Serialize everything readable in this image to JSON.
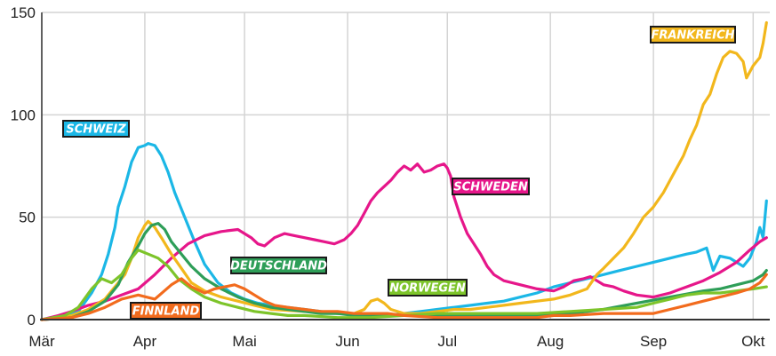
{
  "chart_data": {
    "type": "line",
    "x_unit": "day-of-year (1 = 1 Jan)",
    "x_ticks": [
      {
        "label": "Mär",
        "x": 61
      },
      {
        "label": "Apr",
        "x": 92
      },
      {
        "label": "Mai",
        "x": 122
      },
      {
        "label": "Jun",
        "x": 153
      },
      {
        "label": "Jul",
        "x": 183
      },
      {
        "label": "Aug",
        "x": 214
      },
      {
        "label": "Sep",
        "x": 245
      },
      {
        "label": "Okt",
        "x": 275
      }
    ],
    "xlim": [
      61,
      280
    ],
    "y_ticks": [
      0,
      50,
      100,
      150
    ],
    "ylim": [
      0,
      150
    ],
    "grid": "vertical and horizontal, light gray",
    "series": [
      {
        "name": "SCHWEIZ",
        "color": "#1bb7e6",
        "label_color": "#1bb7e6",
        "points": [
          [
            61,
            0
          ],
          [
            68,
            1
          ],
          [
            72,
            4
          ],
          [
            76,
            13
          ],
          [
            79,
            22
          ],
          [
            81,
            32
          ],
          [
            83,
            45
          ],
          [
            84,
            55
          ],
          [
            86,
            65
          ],
          [
            88,
            77
          ],
          [
            90,
            84
          ],
          [
            92,
            85
          ],
          [
            93,
            86
          ],
          [
            95,
            85
          ],
          [
            97,
            80
          ],
          [
            99,
            72
          ],
          [
            101,
            62
          ],
          [
            104,
            50
          ],
          [
            107,
            38
          ],
          [
            110,
            27
          ],
          [
            114,
            18
          ],
          [
            118,
            13
          ],
          [
            122,
            10
          ],
          [
            126,
            8
          ],
          [
            130,
            7
          ],
          [
            135,
            6
          ],
          [
            140,
            5
          ],
          [
            145,
            4
          ],
          [
            150,
            3
          ],
          [
            155,
            3
          ],
          [
            160,
            2
          ],
          [
            165,
            2
          ],
          [
            170,
            3
          ],
          [
            175,
            4
          ],
          [
            180,
            5
          ],
          [
            185,
            6
          ],
          [
            190,
            7
          ],
          [
            195,
            8
          ],
          [
            200,
            9
          ],
          [
            205,
            11
          ],
          [
            210,
            13
          ],
          [
            215,
            16
          ],
          [
            220,
            18
          ],
          [
            225,
            20
          ],
          [
            230,
            22
          ],
          [
            235,
            24
          ],
          [
            240,
            26
          ],
          [
            245,
            28
          ],
          [
            250,
            30
          ],
          [
            255,
            32
          ],
          [
            258,
            33
          ],
          [
            261,
            35
          ],
          [
            263,
            24
          ],
          [
            265,
            31
          ],
          [
            268,
            30
          ],
          [
            270,
            28
          ],
          [
            272,
            26
          ],
          [
            274,
            30
          ],
          [
            276,
            38
          ],
          [
            277,
            45
          ],
          [
            278,
            40
          ],
          [
            279,
            58
          ]
        ]
      },
      {
        "name": "SCHWEDEN",
        "color": "#e6168a",
        "label_color": "#e6168a",
        "points": [
          [
            61,
            0
          ],
          [
            66,
            2
          ],
          [
            70,
            4
          ],
          [
            75,
            7
          ],
          [
            80,
            9
          ],
          [
            85,
            12
          ],
          [
            90,
            15
          ],
          [
            95,
            22
          ],
          [
            100,
            30
          ],
          [
            105,
            37
          ],
          [
            110,
            41
          ],
          [
            115,
            43
          ],
          [
            120,
            44
          ],
          [
            122,
            42
          ],
          [
            124,
            40
          ],
          [
            126,
            37
          ],
          [
            128,
            36
          ],
          [
            131,
            40
          ],
          [
            134,
            42
          ],
          [
            137,
            41
          ],
          [
            140,
            40
          ],
          [
            143,
            39
          ],
          [
            146,
            38
          ],
          [
            149,
            37
          ],
          [
            152,
            39
          ],
          [
            154,
            42
          ],
          [
            156,
            46
          ],
          [
            158,
            52
          ],
          [
            160,
            58
          ],
          [
            162,
            62
          ],
          [
            164,
            65
          ],
          [
            166,
            68
          ],
          [
            168,
            72
          ],
          [
            170,
            75
          ],
          [
            172,
            73
          ],
          [
            174,
            76
          ],
          [
            176,
            72
          ],
          [
            178,
            73
          ],
          [
            180,
            75
          ],
          [
            182,
            76
          ],
          [
            183,
            74
          ],
          [
            184,
            70
          ],
          [
            185,
            60
          ],
          [
            187,
            50
          ],
          [
            189,
            42
          ],
          [
            191,
            37
          ],
          [
            193,
            32
          ],
          [
            195,
            26
          ],
          [
            197,
            22
          ],
          [
            200,
            19
          ],
          [
            205,
            17
          ],
          [
            210,
            15
          ],
          [
            215,
            14
          ],
          [
            218,
            16
          ],
          [
            221,
            19
          ],
          [
            224,
            20
          ],
          [
            226,
            21
          ],
          [
            228,
            19
          ],
          [
            230,
            17
          ],
          [
            233,
            16
          ],
          [
            236,
            14
          ],
          [
            240,
            12
          ],
          [
            245,
            11
          ],
          [
            250,
            13
          ],
          [
            255,
            16
          ],
          [
            260,
            19
          ],
          [
            265,
            23
          ],
          [
            270,
            28
          ],
          [
            274,
            34
          ],
          [
            277,
            38
          ],
          [
            279,
            40
          ]
        ]
      },
      {
        "name": "FRANKREICH",
        "color": "#f2b71c",
        "label_color": "#f2b71c",
        "points": [
          [
            61,
            0
          ],
          [
            70,
            2
          ],
          [
            75,
            5
          ],
          [
            80,
            10
          ],
          [
            83,
            16
          ],
          [
            86,
            22
          ],
          [
            88,
            30
          ],
          [
            90,
            40
          ],
          [
            92,
            46
          ],
          [
            93,
            48
          ],
          [
            95,
            45
          ],
          [
            97,
            40
          ],
          [
            100,
            32
          ],
          [
            103,
            25
          ],
          [
            106,
            18
          ],
          [
            110,
            14
          ],
          [
            115,
            11
          ],
          [
            120,
            9
          ],
          [
            125,
            7
          ],
          [
            130,
            5
          ],
          [
            140,
            4
          ],
          [
            150,
            3
          ],
          [
            155,
            3
          ],
          [
            158,
            5
          ],
          [
            160,
            9
          ],
          [
            162,
            10
          ],
          [
            164,
            8
          ],
          [
            166,
            5
          ],
          [
            170,
            3
          ],
          [
            175,
            3
          ],
          [
            180,
            4
          ],
          [
            185,
            5
          ],
          [
            190,
            5
          ],
          [
            195,
            6
          ],
          [
            200,
            7
          ],
          [
            205,
            8
          ],
          [
            210,
            9
          ],
          [
            215,
            10
          ],
          [
            220,
            12
          ],
          [
            225,
            15
          ],
          [
            228,
            22
          ],
          [
            230,
            25
          ],
          [
            233,
            30
          ],
          [
            236,
            35
          ],
          [
            239,
            42
          ],
          [
            242,
            50
          ],
          [
            245,
            55
          ],
          [
            248,
            62
          ],
          [
            250,
            68
          ],
          [
            252,
            74
          ],
          [
            254,
            80
          ],
          [
            256,
            88
          ],
          [
            258,
            95
          ],
          [
            260,
            105
          ],
          [
            262,
            110
          ],
          [
            264,
            120
          ],
          [
            266,
            128
          ],
          [
            268,
            131
          ],
          [
            270,
            130
          ],
          [
            272,
            126
          ],
          [
            273,
            118
          ],
          [
            275,
            124
          ],
          [
            277,
            128
          ],
          [
            278,
            135
          ],
          [
            279,
            145
          ]
        ]
      },
      {
        "name": "DEUTSCHLAND",
        "color": "#2e9e58",
        "label_color": "#2e9e58",
        "points": [
          [
            61,
            0
          ],
          [
            70,
            1
          ],
          [
            75,
            4
          ],
          [
            80,
            9
          ],
          [
            84,
            17
          ],
          [
            87,
            28
          ],
          [
            90,
            36
          ],
          [
            92,
            42
          ],
          [
            94,
            46
          ],
          [
            96,
            47
          ],
          [
            98,
            44
          ],
          [
            100,
            38
          ],
          [
            103,
            32
          ],
          [
            106,
            26
          ],
          [
            110,
            20
          ],
          [
            115,
            15
          ],
          [
            120,
            11
          ],
          [
            125,
            8
          ],
          [
            130,
            6
          ],
          [
            135,
            5
          ],
          [
            140,
            4
          ],
          [
            145,
            3
          ],
          [
            150,
            3
          ],
          [
            155,
            2
          ],
          [
            160,
            2
          ],
          [
            170,
            2
          ],
          [
            180,
            2
          ],
          [
            190,
            2
          ],
          [
            200,
            2
          ],
          [
            210,
            2
          ],
          [
            220,
            3
          ],
          [
            230,
            5
          ],
          [
            240,
            8
          ],
          [
            250,
            11
          ],
          [
            260,
            14
          ],
          [
            265,
            15
          ],
          [
            270,
            17
          ],
          [
            275,
            19
          ],
          [
            278,
            22
          ],
          [
            279,
            24
          ]
        ]
      },
      {
        "name": "NORWEGEN",
        "color": "#7dc42a",
        "label_color": "#7dc42a",
        "points": [
          [
            61,
            0
          ],
          [
            68,
            2
          ],
          [
            72,
            6
          ],
          [
            76,
            15
          ],
          [
            79,
            20
          ],
          [
            82,
            18
          ],
          [
            85,
            22
          ],
          [
            88,
            30
          ],
          [
            90,
            34
          ],
          [
            93,
            32
          ],
          [
            96,
            30
          ],
          [
            99,
            26
          ],
          [
            102,
            20
          ],
          [
            106,
            15
          ],
          [
            110,
            11
          ],
          [
            115,
            8
          ],
          [
            120,
            6
          ],
          [
            125,
            4
          ],
          [
            130,
            3
          ],
          [
            135,
            2
          ],
          [
            140,
            2
          ],
          [
            150,
            1
          ],
          [
            160,
            1
          ],
          [
            170,
            2
          ],
          [
            180,
            3
          ],
          [
            190,
            3
          ],
          [
            200,
            3
          ],
          [
            210,
            3
          ],
          [
            220,
            4
          ],
          [
            230,
            5
          ],
          [
            240,
            6
          ],
          [
            245,
            8
          ],
          [
            250,
            10
          ],
          [
            255,
            12
          ],
          [
            260,
            13
          ],
          [
            265,
            13
          ],
          [
            270,
            14
          ],
          [
            275,
            15
          ],
          [
            279,
            16
          ]
        ]
      },
      {
        "name": "FINNLAND",
        "color": "#f26b1d",
        "label_color": "#f26b1d",
        "points": [
          [
            61,
            0
          ],
          [
            70,
            1
          ],
          [
            75,
            3
          ],
          [
            80,
            6
          ],
          [
            85,
            10
          ],
          [
            90,
            12
          ],
          [
            95,
            10
          ],
          [
            100,
            17
          ],
          [
            103,
            20
          ],
          [
            106,
            16
          ],
          [
            110,
            13
          ],
          [
            113,
            15
          ],
          [
            116,
            16
          ],
          [
            119,
            17
          ],
          [
            122,
            15
          ],
          [
            125,
            12
          ],
          [
            128,
            9
          ],
          [
            131,
            7
          ],
          [
            135,
            6
          ],
          [
            140,
            5
          ],
          [
            145,
            4
          ],
          [
            150,
            4
          ],
          [
            155,
            3
          ],
          [
            160,
            3
          ],
          [
            165,
            3
          ],
          [
            170,
            2
          ],
          [
            180,
            1
          ],
          [
            190,
            1
          ],
          [
            200,
            1
          ],
          [
            210,
            1
          ],
          [
            215,
            2
          ],
          [
            220,
            2
          ],
          [
            230,
            3
          ],
          [
            240,
            3
          ],
          [
            245,
            3
          ],
          [
            250,
            5
          ],
          [
            255,
            7
          ],
          [
            260,
            9
          ],
          [
            265,
            11
          ],
          [
            270,
            13
          ],
          [
            274,
            15
          ],
          [
            277,
            18
          ],
          [
            279,
            22
          ]
        ]
      }
    ]
  }
}
